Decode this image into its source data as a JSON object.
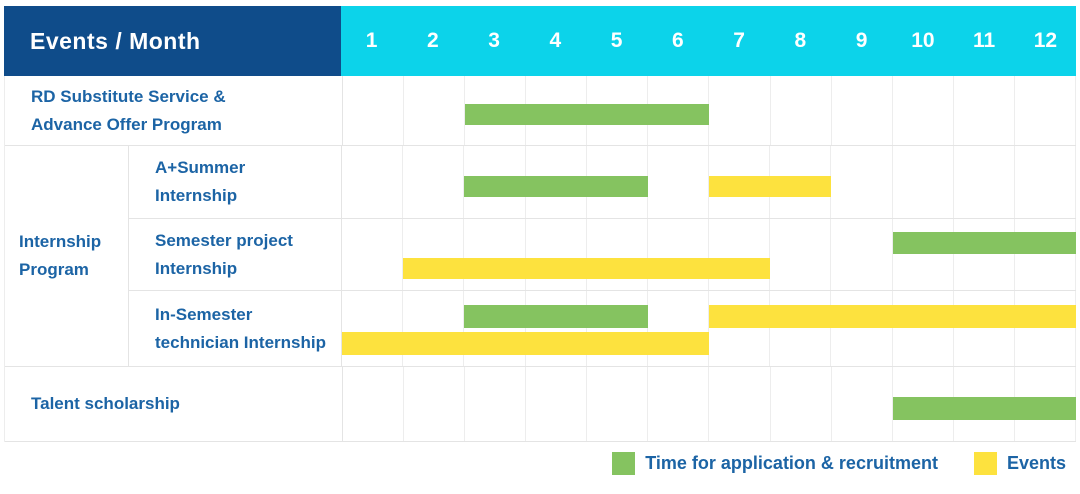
{
  "header": {
    "title": "Events / Month",
    "months": [
      "1",
      "2",
      "3",
      "4",
      "5",
      "6",
      "7",
      "8",
      "9",
      "10",
      "11",
      "12"
    ]
  },
  "colors": {
    "navy": "#0f4c8a",
    "cyan": "#0cd3ea",
    "green": "#85c360",
    "yellow": "#fde23e",
    "label_blue": "#1c64a5"
  },
  "group": {
    "label_lines": [
      "Internship",
      "Program"
    ]
  },
  "rows": [
    {
      "id": "rd-substitute-service",
      "label_lines": [
        "RD Substitute Service &",
        "Advance Offer Program"
      ],
      "lines": 1,
      "bars": [
        {
          "color": "green",
          "start": 3,
          "end": 6,
          "line": 0
        }
      ]
    },
    {
      "id": "a-plus-summer-internship",
      "label_lines": [
        "A+Summer",
        "Internship"
      ],
      "lines": 1,
      "bars": [
        {
          "color": "green",
          "start": 3,
          "end": 5,
          "line": 0
        },
        {
          "color": "yellow",
          "start": 7,
          "end": 8,
          "line": 0
        }
      ]
    },
    {
      "id": "semester-project-internship",
      "label_lines": [
        "Semester project",
        "Internship"
      ],
      "lines": 2,
      "bars": [
        {
          "color": "green",
          "start": 10,
          "end": 12,
          "line": 0
        },
        {
          "color": "yellow",
          "start": 2,
          "end": 7,
          "line": 1
        }
      ]
    },
    {
      "id": "in-semester-technician-internship",
      "label_lines": [
        "In-Semester",
        "technician Internship"
      ],
      "lines": 2,
      "bars": [
        {
          "color": "green",
          "start": 3,
          "end": 5,
          "line": 0
        },
        {
          "color": "yellow",
          "start": 7,
          "end": 12,
          "line": 0
        },
        {
          "color": "yellow",
          "start": 1,
          "end": 6,
          "line": 1
        }
      ]
    },
    {
      "id": "talent-scholarship",
      "label_lines": [
        "Talent scholarship"
      ],
      "lines": 1,
      "bars": [
        {
          "color": "green",
          "start": 10,
          "end": 12,
          "line": 0
        }
      ]
    }
  ],
  "legend": [
    {
      "color": "green",
      "label": "Time for application & recruitment"
    },
    {
      "color": "yellow",
      "label": "Events"
    }
  ],
  "chart_data": {
    "type": "bar",
    "subtype": "gantt",
    "title": "Events / Month",
    "x_axis": {
      "label": "Month",
      "ticks": [
        1,
        2,
        3,
        4,
        5,
        6,
        7,
        8,
        9,
        10,
        11,
        12
      ],
      "range": [
        1,
        12
      ]
    },
    "legend_entries": [
      {
        "name": "Time for application & recruitment",
        "color": "#85c360"
      },
      {
        "name": "Events",
        "color": "#fde23e"
      }
    ],
    "rows": [
      {
        "task": "RD Substitute Service & Advance Offer Program",
        "group": null,
        "spans": [
          {
            "type": "application_recruitment",
            "months": [
              3,
              6
            ]
          }
        ]
      },
      {
        "task": "A+Summer Internship",
        "group": "Internship Program",
        "spans": [
          {
            "type": "application_recruitment",
            "months": [
              3,
              5
            ]
          },
          {
            "type": "event",
            "months": [
              7,
              8
            ]
          }
        ]
      },
      {
        "task": "Semester project Internship",
        "group": "Internship Program",
        "spans": [
          {
            "type": "application_recruitment",
            "months": [
              10,
              12
            ]
          },
          {
            "type": "event",
            "months": [
              2,
              7
            ]
          }
        ]
      },
      {
        "task": "In-Semester technician Internship",
        "group": "Internship Program",
        "spans": [
          {
            "type": "application_recruitment",
            "months": [
              3,
              5
            ]
          },
          {
            "type": "event",
            "months": [
              7,
              12
            ]
          },
          {
            "type": "event",
            "months": [
              1,
              6
            ]
          }
        ]
      },
      {
        "task": "Talent scholarship",
        "group": null,
        "spans": [
          {
            "type": "application_recruitment",
            "months": [
              10,
              12
            ]
          }
        ]
      }
    ],
    "grid": true,
    "legend_position": "bottom-right"
  }
}
